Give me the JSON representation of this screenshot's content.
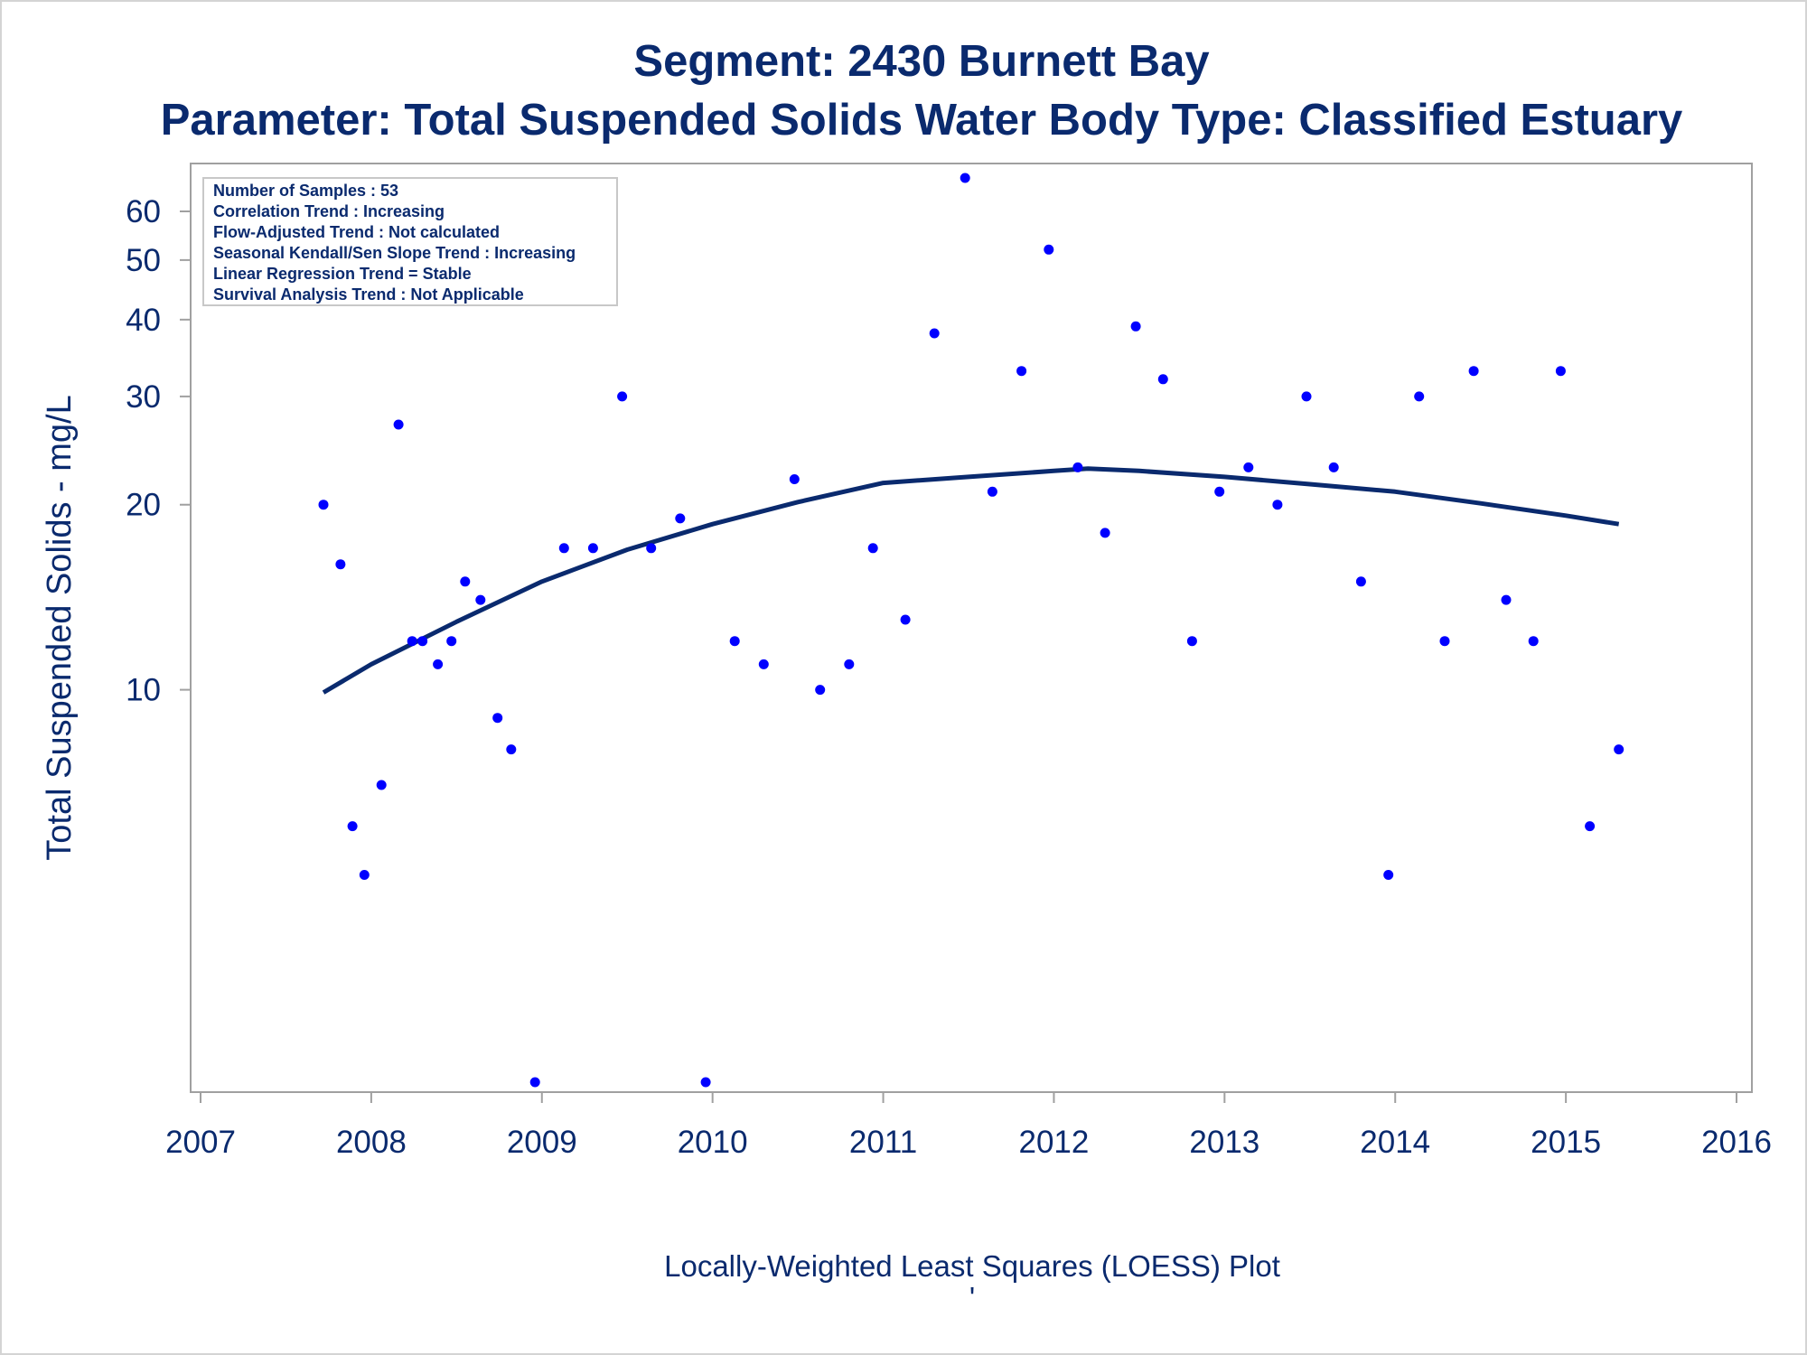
{
  "chart_data": {
    "type": "scatter",
    "title": "Segment: 2430  Burnett Bay",
    "subtitle": "Parameter: Total Suspended Solids   Water Body Type: Classified Estuary",
    "xlabel": "Locally-Weighted Least Squares (LOESS) Plot",
    "ylabel": "Total Suspended Solids - mg/L",
    "footnote_mark": "'",
    "x_ticks": [
      "2007",
      "2008",
      "2009",
      "2010",
      "2011",
      "2012",
      "2013",
      "2014",
      "2015",
      "2016"
    ],
    "xlim": [
      2007,
      2016
    ],
    "y_scale": "log",
    "ylim": [
      2.3,
      68
    ],
    "y_ticks": [
      "10",
      "20",
      "30",
      "40",
      "50",
      "60"
    ],
    "y_tick_values": [
      10,
      20,
      30,
      40,
      50,
      60
    ],
    "grid": false,
    "stats_box": {
      "position": "top-left",
      "lines": [
        "Number of Samples : 53",
        "Correlation Trend : Increasing",
        "Flow-Adjusted Trend : Not calculated",
        "Seasonal Kendall/Sen Slope Trend : Increasing",
        "Linear Regression Trend = Stable",
        "Survival Analysis Trend : Not Applicable"
      ]
    },
    "colors": {
      "points": "#0000ff",
      "loess_line": "#0a2a6e",
      "text": "#0a2a6e",
      "axis": "#a0a0a0"
    },
    "series": [
      {
        "type": "scatter",
        "x": [
          2007.72,
          2007.82,
          2007.89,
          2007.96,
          2008.06,
          2008.16,
          2008.24,
          2008.3,
          2008.39,
          2008.47,
          2008.55,
          2008.64,
          2008.74,
          2008.82,
          2008.96,
          2009.13,
          2009.3,
          2009.47,
          2009.64,
          2009.81,
          2009.96,
          2010.13,
          2010.3,
          2010.48,
          2010.63,
          2010.8,
          2010.94,
          2011.13,
          2011.3,
          2011.48,
          2011.64,
          2011.81,
          2011.97,
          2012.14,
          2012.3,
          2012.48,
          2012.64,
          2012.81,
          2012.97,
          2013.14,
          2013.31,
          2013.48,
          2013.64,
          2013.8,
          2013.96,
          2014.14,
          2014.29,
          2014.46,
          2014.65,
          2014.81,
          2014.97,
          2015.14,
          2015.31
        ],
        "y": [
          20,
          16,
          6,
          5,
          7,
          27,
          12,
          12,
          11,
          12,
          15,
          14,
          9,
          8,
          2.3,
          17,
          17,
          30,
          17,
          19,
          2.3,
          12,
          11,
          22,
          10,
          11,
          17,
          13,
          38,
          68,
          21,
          33,
          52,
          23,
          18,
          39,
          32,
          12,
          21,
          23,
          20,
          30,
          23,
          15,
          5,
          30,
          12,
          33,
          14,
          12,
          33,
          6,
          8
        ]
      },
      {
        "type": "line",
        "x": [
          2007.72,
          2008.0,
          2008.5,
          2009.0,
          2009.5,
          2010.0,
          2010.5,
          2011.0,
          2011.5,
          2012.0,
          2012.2,
          2012.5,
          2013.0,
          2013.5,
          2014.0,
          2014.5,
          2015.0,
          2015.31
        ],
        "y": [
          9.9,
          11.0,
          12.9,
          15.0,
          16.9,
          18.6,
          20.2,
          21.7,
          22.2,
          22.7,
          22.9,
          22.7,
          22.2,
          21.6,
          21.0,
          20.1,
          19.2,
          18.6
        ]
      }
    ]
  }
}
